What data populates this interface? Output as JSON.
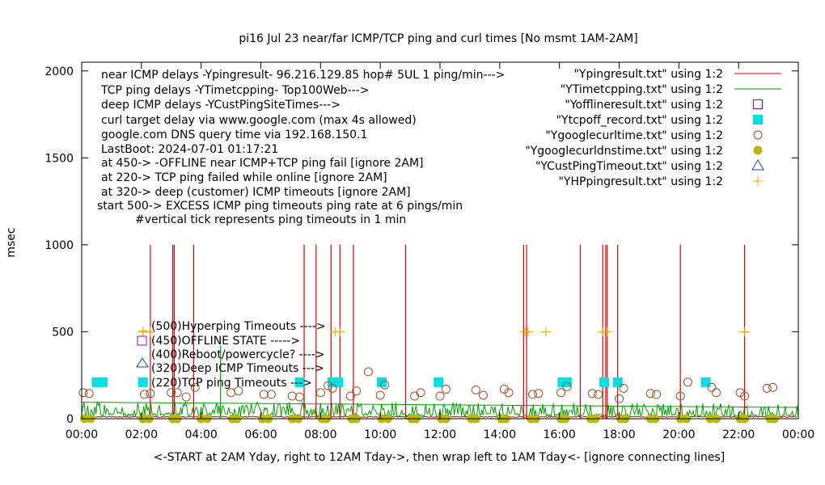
{
  "chart_data": {
    "type": "line",
    "title": "pi16 Jul 23  near/far ICMP/TCP ping and curl times [No msmt 1AM-2AM]",
    "xlabel": "<-START at 2AM Yday, right to 12AM Tday->, then wrap left to 1AM Tday<- [ignore connecting lines]",
    "ylabel": "msec",
    "xlim": [
      0,
      24
    ],
    "ylim": [
      0,
      2050
    ],
    "x_ticks": [
      "00:00",
      "02:00",
      "04:00",
      "06:00",
      "08:00",
      "10:00",
      "12:00",
      "14:00",
      "16:00",
      "18:00",
      "20:00",
      "22:00",
      "00:00"
    ],
    "y_ticks": [
      "0",
      "500",
      "1000",
      "1500",
      "2000"
    ],
    "y_tick_values": [
      0,
      500,
      1000,
      1500,
      2000
    ],
    "grid": false,
    "legend_position": "top-right",
    "annotations": [
      "near ICMP delays -Ypingresult- 96.216.129.85 hop# 5UL 1 ping/min--->",
      "TCP ping delays -YTimetcpping- Top100Web--->",
      "deep ICMP delays -YCustPingSiteTimes--->",
      "curl target delay via www.google.com (max 4s allowed)",
      "google.com DNS query time via 192.168.150.1",
      "LastBoot: 2024-07-01 01:17:21",
      "at 450-> -OFFLINE near ICMP+TCP ping fail [ignore 2AM]",
      "at 220-> TCP ping failed while online [ignore 2AM]",
      "at 320-> deep (customer) ICMP timeouts [ignore 2AM]",
      "start 500-> EXCESS ICMP ping timeouts ping rate at 6 pings/min",
      "#vertical tick represents ping timeouts in 1 min"
    ],
    "inner_labels": [
      "(500)Hyperping Timeouts ---->",
      "(450)OFFLINE STATE ----->",
      "(400)Reboot/powercycle? ---->",
      "(320)Deep ICMP Timeouts --->",
      "(220)TCP ping Timeouts --->"
    ],
    "series": [
      {
        "name": "\"Ypingresult.txt\" using 1:2",
        "style": "line",
        "color": "#e00000",
        "baseline": 8,
        "spikes": [
          2.3,
          3.05,
          3.1,
          3.75,
          7.45,
          7.85,
          8.35,
          8.65,
          9.1,
          10.85,
          14.8,
          14.9,
          16.7,
          17.45,
          17.55,
          17.6,
          17.95,
          20.05,
          22.2
        ],
        "spike_value": 1000
      },
      {
        "name": "\"YTimetcpping.txt\" using 1:2",
        "style": "line",
        "color": "#00a000",
        "baseline_start": 95,
        "baseline_end": 65,
        "noise_max": 90,
        "spikes": [
          4.65
        ],
        "spike_value": 420
      },
      {
        "name": "\"Yofflineresult.txt\" using 1:2",
        "style": "open-square",
        "color": "#9400d3",
        "points": []
      },
      {
        "name": "\"Ytcpoff_record.txt\" using 1:2",
        "style": "filled-square",
        "color": "#00e0e0",
        "points": [
          [
            0.5,
            210
          ],
          [
            0.7,
            210
          ],
          [
            2.05,
            210
          ],
          [
            7.3,
            210
          ],
          [
            8.4,
            210
          ],
          [
            8.6,
            210
          ],
          [
            10.05,
            210
          ],
          [
            11.95,
            210
          ],
          [
            16.1,
            210
          ],
          [
            16.25,
            210
          ],
          [
            17.5,
            210
          ],
          [
            17.95,
            210
          ],
          [
            20.9,
            210
          ]
        ]
      },
      {
        "name": "\"Ygooglecurltime.txt\" using 1:2",
        "style": "open-circle",
        "color": "#a0522d",
        "points": [
          [
            0.05,
            150
          ],
          [
            0.25,
            145
          ],
          [
            2.1,
            140
          ],
          [
            2.3,
            145
          ],
          [
            3.0,
            150
          ],
          [
            3.2,
            150
          ],
          [
            3.5,
            125
          ],
          [
            3.8,
            180
          ],
          [
            5.0,
            150
          ],
          [
            5.25,
            160
          ],
          [
            6.1,
            140
          ],
          [
            6.35,
            140
          ],
          [
            7.05,
            130
          ],
          [
            7.3,
            125
          ],
          [
            8.0,
            150
          ],
          [
            8.25,
            190
          ],
          [
            8.4,
            175
          ],
          [
            9.0,
            130
          ],
          [
            9.2,
            160
          ],
          [
            9.6,
            270
          ],
          [
            10.0,
            135
          ],
          [
            10.15,
            195
          ],
          [
            11.15,
            130
          ],
          [
            11.35,
            150
          ],
          [
            12.0,
            130
          ],
          [
            12.2,
            170
          ],
          [
            13.2,
            165
          ],
          [
            13.45,
            135
          ],
          [
            14.15,
            170
          ],
          [
            14.3,
            150
          ],
          [
            15.1,
            140
          ],
          [
            15.3,
            145
          ],
          [
            16.05,
            150
          ],
          [
            16.25,
            185
          ],
          [
            17.1,
            145
          ],
          [
            17.3,
            140
          ],
          [
            18.0,
            115
          ],
          [
            18.15,
            175
          ],
          [
            19.05,
            145
          ],
          [
            19.25,
            140
          ],
          [
            20.05,
            130
          ],
          [
            20.3,
            210
          ],
          [
            21.1,
            180
          ],
          [
            21.25,
            150
          ],
          [
            22.05,
            150
          ],
          [
            22.2,
            130
          ],
          [
            22.95,
            175
          ],
          [
            23.15,
            180
          ]
        ]
      },
      {
        "name": "\"Ygooglecurldnstime.txt\" using 1:2",
        "style": "filled-circle",
        "color": "#b8b800",
        "points": [
          [
            0.1,
            0
          ],
          [
            0.3,
            0
          ],
          [
            2.05,
            0
          ],
          [
            2.25,
            0
          ],
          [
            3.05,
            0
          ],
          [
            3.2,
            0
          ],
          [
            4.0,
            0
          ],
          [
            4.2,
            0
          ],
          [
            5.05,
            0
          ],
          [
            5.2,
            0
          ],
          [
            6.05,
            0
          ],
          [
            6.25,
            0
          ],
          [
            7.05,
            0
          ],
          [
            7.25,
            0
          ],
          [
            8.05,
            0
          ],
          [
            8.2,
            0
          ],
          [
            9.05,
            0
          ],
          [
            9.2,
            0
          ],
          [
            10.05,
            0
          ],
          [
            10.25,
            0
          ],
          [
            11.05,
            0
          ],
          [
            11.2,
            0
          ],
          [
            12.05,
            0
          ],
          [
            12.2,
            0
          ],
          [
            13.05,
            0
          ],
          [
            13.2,
            0
          ],
          [
            14.05,
            0
          ],
          [
            14.2,
            0
          ],
          [
            15.05,
            0
          ],
          [
            15.2,
            0
          ],
          [
            16.05,
            0
          ],
          [
            16.2,
            0
          ],
          [
            17.05,
            0
          ],
          [
            17.2,
            0
          ],
          [
            18.05,
            0
          ],
          [
            18.2,
            0
          ],
          [
            19.05,
            0
          ],
          [
            19.2,
            0
          ],
          [
            20.05,
            0
          ],
          [
            20.25,
            0
          ],
          [
            21.05,
            0
          ],
          [
            21.25,
            0
          ],
          [
            22.05,
            0
          ],
          [
            22.2,
            0
          ],
          [
            23.05,
            0
          ],
          [
            23.2,
            0
          ]
        ]
      },
      {
        "name": "\"YCustPingTimeout.txt\" using 1:2",
        "style": "open-triangle",
        "color": "#1e40c0",
        "points": []
      },
      {
        "name": "\"YHPpingresult.txt\" using 1:2",
        "style": "plus",
        "color": "#f0a000",
        "points": [
          [
            2.05,
            500
          ],
          [
            2.3,
            500
          ],
          [
            8.5,
            500
          ],
          [
            8.65,
            500
          ],
          [
            14.85,
            500
          ],
          [
            14.95,
            500
          ],
          [
            15.55,
            500
          ],
          [
            17.45,
            500
          ],
          [
            17.6,
            500
          ],
          [
            22.2,
            500
          ]
        ]
      }
    ]
  }
}
